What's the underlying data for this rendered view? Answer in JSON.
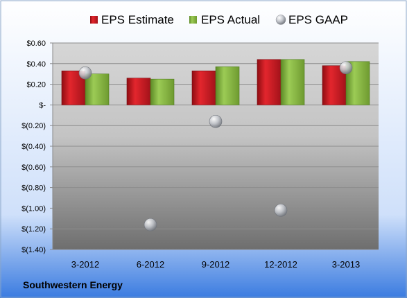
{
  "company": "Southwestern Energy",
  "colors": {
    "estimate": "#c8141c",
    "actual": "#7fae3a",
    "gaap": "#b9bcc2",
    "background_top": "#ffffff",
    "background_bottom": "#3a7be0"
  },
  "chart_data": {
    "type": "bar",
    "categories": [
      "3-2012",
      "6-2012",
      "9-2012",
      "12-2012",
      "3-2013"
    ],
    "series": [
      {
        "name": "EPS Estimate",
        "kind": "bar",
        "values": [
          0.33,
          0.26,
          0.33,
          0.44,
          0.38
        ]
      },
      {
        "name": "EPS Actual",
        "kind": "bar",
        "values": [
          0.3,
          0.25,
          0.37,
          0.44,
          0.42
        ]
      },
      {
        "name": "EPS GAAP",
        "kind": "scatter",
        "values": [
          0.31,
          -1.16,
          -0.16,
          -1.02,
          0.36
        ]
      }
    ],
    "ylim": [
      -1.4,
      0.6
    ],
    "yticks": [
      "$0.60",
      "$0.40",
      "$0.20",
      "$-",
      "$(0.20)",
      "$(0.40)",
      "$(0.60)",
      "$(0.80)",
      "$(1.00)",
      "$(1.20)",
      "$(1.40)"
    ],
    "grid": true,
    "legend": "top"
  }
}
